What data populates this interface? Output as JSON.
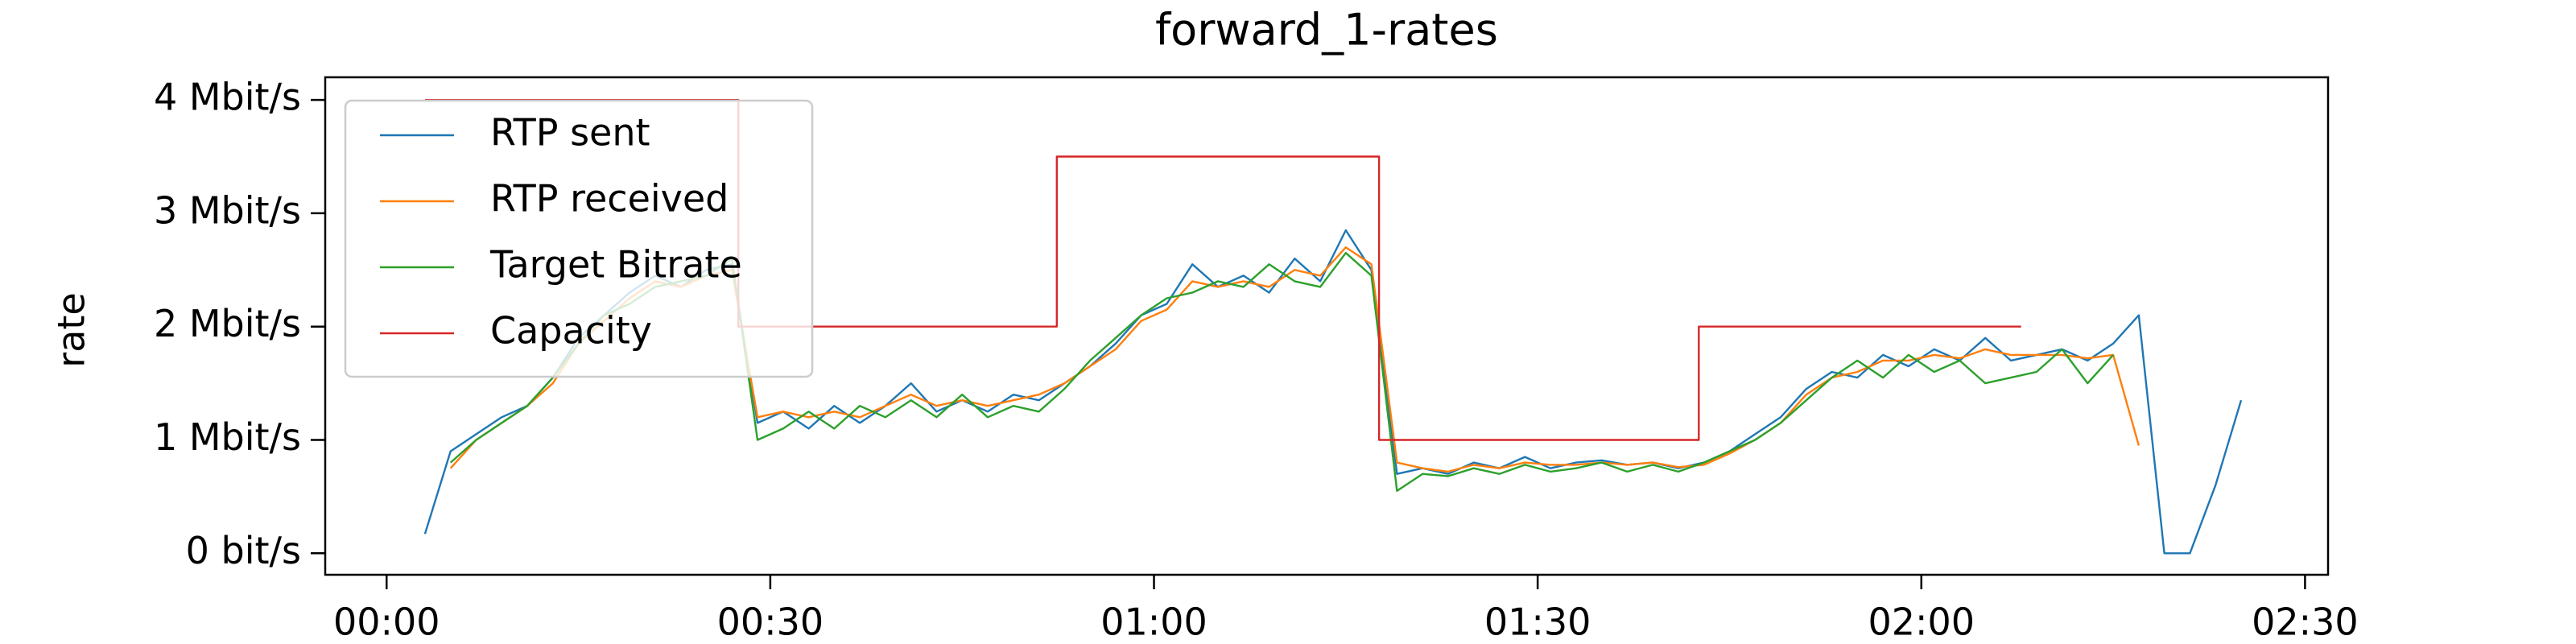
{
  "chart_data": {
    "type": "line",
    "title": "forward_1-rates",
    "y_label": "rate",
    "xlim": [
      -4.8,
      151.8
    ],
    "xticks": [
      {
        "value": 0,
        "label": "00:00"
      },
      {
        "value": 30,
        "label": "00:30"
      },
      {
        "value": 60,
        "label": "01:00"
      },
      {
        "value": 90,
        "label": "01:30"
      },
      {
        "value": 120,
        "label": "02:00"
      },
      {
        "value": 150,
        "label": "02:30"
      }
    ],
    "ylim": [
      -190000,
      4200000
    ],
    "yticks": [
      {
        "value": 0,
        "label": "0 bit/s"
      },
      {
        "value": 1000000,
        "label": "1 Mbit/s"
      },
      {
        "value": 2000000,
        "label": "2 Mbit/s"
      },
      {
        "value": 3000000,
        "label": "3 Mbit/s"
      },
      {
        "value": 4000000,
        "label": "4 Mbit/s"
      }
    ],
    "legend": "upper left",
    "x": [
      3,
      5,
      7,
      9,
      11,
      13,
      15,
      17,
      19,
      21,
      23,
      25,
      27,
      29,
      31,
      33,
      35,
      37,
      39,
      41,
      43,
      45,
      47,
      49,
      51,
      53,
      55,
      57,
      59,
      61,
      63,
      65,
      67,
      69,
      71,
      73,
      75,
      77,
      79,
      81,
      83,
      85,
      87,
      89,
      91,
      93,
      95,
      97,
      99,
      101,
      103,
      105,
      107,
      109,
      111,
      113,
      115,
      117,
      119,
      121,
      123,
      125,
      127,
      129,
      131,
      133,
      135,
      137,
      139,
      141,
      143,
      145
    ],
    "series": [
      {
        "name": "RTP sent",
        "color": "#1f77b4",
        "values": [
          170000,
          900000,
          1050000,
          1200000,
          1300000,
          1550000,
          1900000,
          2100000,
          2300000,
          2450000,
          2350000,
          2500000,
          2550000,
          1150000,
          1250000,
          1100000,
          1300000,
          1150000,
          1300000,
          1500000,
          1250000,
          1350000,
          1250000,
          1400000,
          1350000,
          1500000,
          1650000,
          1850000,
          2100000,
          2200000,
          2550000,
          2350000,
          2450000,
          2300000,
          2600000,
          2400000,
          2850000,
          2500000,
          700000,
          750000,
          700000,
          800000,
          750000,
          850000,
          750000,
          800000,
          820000,
          780000,
          800000,
          750000,
          800000,
          900000,
          1050000,
          1200000,
          1450000,
          1600000,
          1550000,
          1750000,
          1650000,
          1800000,
          1700000,
          1900000,
          1700000,
          1750000,
          1800000,
          1700000,
          1850000,
          2100000,
          0,
          0,
          600000,
          1350000
        ]
      },
      {
        "name": "RTP received",
        "color": "#ff7f0e",
        "values": [
          null,
          750000,
          1000000,
          1150000,
          1300000,
          1500000,
          1850000,
          2050000,
          2250000,
          2400000,
          2350000,
          2450000,
          2500000,
          1200000,
          1250000,
          1200000,
          1250000,
          1200000,
          1300000,
          1400000,
          1300000,
          1350000,
          1300000,
          1350000,
          1400000,
          1500000,
          1650000,
          1800000,
          2050000,
          2150000,
          2400000,
          2350000,
          2400000,
          2350000,
          2500000,
          2450000,
          2700000,
          2550000,
          800000,
          750000,
          720000,
          780000,
          750000,
          800000,
          780000,
          780000,
          800000,
          780000,
          800000,
          760000,
          780000,
          880000,
          1000000,
          1150000,
          1400000,
          1550000,
          1600000,
          1700000,
          1700000,
          1750000,
          1720000,
          1800000,
          1750000,
          1750000,
          1750000,
          1720000,
          1750000,
          950000,
          null,
          null,
          null,
          null
        ]
      },
      {
        "name": "Target Bitrate",
        "color": "#2ca02c",
        "values": [
          null,
          800000,
          1000000,
          1150000,
          1300000,
          1550000,
          1850000,
          2100000,
          2200000,
          2350000,
          2400000,
          2450000,
          2600000,
          1000000,
          1100000,
          1250000,
          1100000,
          1300000,
          1200000,
          1350000,
          1200000,
          1400000,
          1200000,
          1300000,
          1250000,
          1450000,
          1700000,
          1900000,
          2100000,
          2250000,
          2300000,
          2400000,
          2350000,
          2550000,
          2400000,
          2350000,
          2650000,
          2450000,
          550000,
          700000,
          680000,
          750000,
          700000,
          780000,
          720000,
          750000,
          800000,
          720000,
          780000,
          720000,
          800000,
          900000,
          1000000,
          1150000,
          1350000,
          1550000,
          1700000,
          1550000,
          1750000,
          1600000,
          1700000,
          1500000,
          1550000,
          1600000,
          1800000,
          1500000,
          1750000,
          null,
          null,
          null,
          null,
          null
        ]
      },
      {
        "name": "Capacity",
        "color": "#d62728",
        "x": [
          3,
          27.5,
          27.5,
          52.4,
          52.4,
          77.6,
          77.6,
          102.6,
          102.6,
          127.8
        ],
        "values": [
          4000000,
          4000000,
          2000000,
          2000000,
          3500000,
          3500000,
          1000000,
          1000000,
          2000000,
          2000000
        ]
      }
    ]
  }
}
